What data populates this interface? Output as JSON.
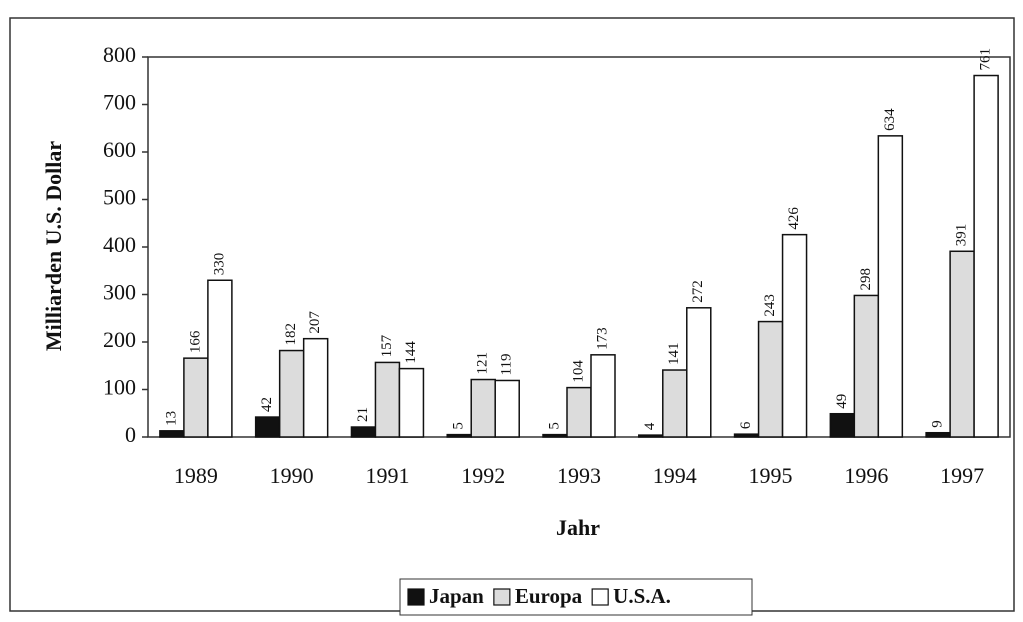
{
  "chart_data": {
    "type": "bar",
    "x_label": "Jahr",
    "y_label": "Milliarden U.S. Dollar",
    "categories": [
      "1989",
      "1990",
      "1991",
      "1992",
      "1993",
      "1994",
      "1995",
      "1996",
      "1997"
    ],
    "series": [
      {
        "name": "Japan",
        "color": "#111111",
        "values": [
          13,
          42,
          21,
          5,
          5,
          4,
          6,
          49,
          9
        ]
      },
      {
        "name": "Europa",
        "color": "#dcdcdc",
        "values": [
          166,
          182,
          157,
          121,
          104,
          141,
          243,
          298,
          391
        ]
      },
      {
        "name": "U.S.A.",
        "color": "#ffffff",
        "values": [
          330,
          207,
          144,
          119,
          173,
          272,
          426,
          634,
          761
        ]
      }
    ],
    "ylim": [
      0,
      800
    ],
    "yticks": [
      0,
      100,
      200,
      300,
      400,
      500,
      600,
      700,
      800
    ],
    "data_labels": true,
    "legend": "bottom"
  }
}
